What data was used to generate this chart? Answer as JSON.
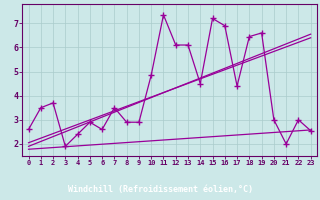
{
  "xlabel": "Windchill (Refroidissement éolien,°C)",
  "bg_color": "#cce8e8",
  "axis_bg_color": "#660066",
  "line_color": "#990099",
  "x_data": [
    0,
    1,
    2,
    3,
    4,
    5,
    6,
    7,
    8,
    9,
    10,
    11,
    12,
    13,
    14,
    15,
    16,
    17,
    18,
    19,
    20,
    21,
    22,
    23
  ],
  "y_scatter": [
    2.6,
    3.5,
    3.7,
    1.9,
    2.4,
    2.9,
    2.6,
    3.5,
    2.9,
    2.9,
    4.85,
    7.35,
    6.1,
    6.1,
    4.5,
    7.2,
    6.9,
    4.4,
    6.45,
    6.6,
    3.0,
    2.0,
    3.0,
    2.55
  ],
  "trend1_x": [
    0,
    23
  ],
  "trend1_y": [
    2.05,
    6.4
  ],
  "trend2_x": [
    0,
    23
  ],
  "trend2_y": [
    1.9,
    6.55
  ],
  "trend3_x": [
    0,
    23
  ],
  "trend3_y": [
    1.78,
    2.58
  ],
  "ylim": [
    1.5,
    7.8
  ],
  "xlim": [
    -0.5,
    23.5
  ],
  "yticks": [
    2,
    3,
    4,
    5,
    6,
    7
  ],
  "xticks": [
    0,
    1,
    2,
    3,
    4,
    5,
    6,
    7,
    8,
    9,
    10,
    11,
    12,
    13,
    14,
    15,
    16,
    17,
    18,
    19,
    20,
    21,
    22,
    23
  ],
  "grid_color": "#aacccc",
  "spine_color": "#660066",
  "tick_color": "#660066",
  "label_color": "#ffffff",
  "yticklabel_color": "#660066",
  "xticklabel_color": "#660066"
}
